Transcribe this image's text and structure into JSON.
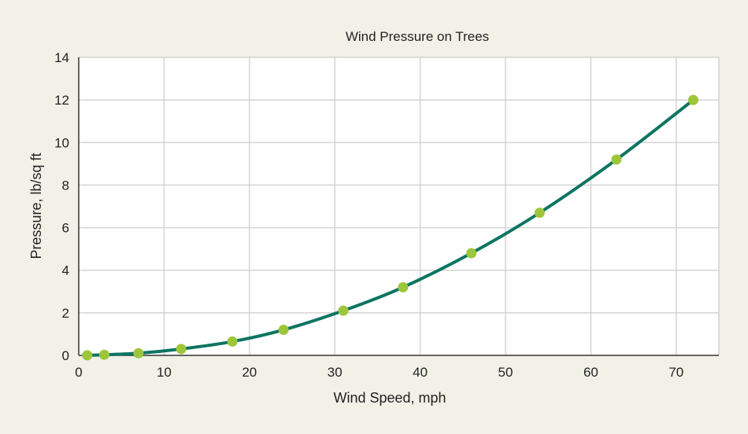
{
  "chart_data": {
    "type": "line",
    "title": "Wind Pressure on Trees",
    "xlabel": "Wind Speed, mph",
    "ylabel": "Pressure, lb/sq ft",
    "xlim": [
      0,
      75
    ],
    "ylim": [
      0,
      14
    ],
    "xticks": [
      0,
      10,
      20,
      30,
      40,
      50,
      60,
      70
    ],
    "yticks": [
      0,
      2,
      4,
      6,
      8,
      10,
      12,
      14
    ],
    "grid": true,
    "series": [
      {
        "name": "Pressure",
        "x": [
          1,
          3,
          7,
          12,
          18,
          24,
          31,
          38,
          46,
          54,
          63,
          72
        ],
        "y": [
          0.004,
          0.03,
          0.1,
          0.3,
          0.65,
          1.2,
          2.1,
          3.2,
          4.8,
          6.7,
          9.2,
          12.0
        ],
        "line_color": "#0d7561",
        "marker_color": "#9dc63b"
      }
    ]
  }
}
